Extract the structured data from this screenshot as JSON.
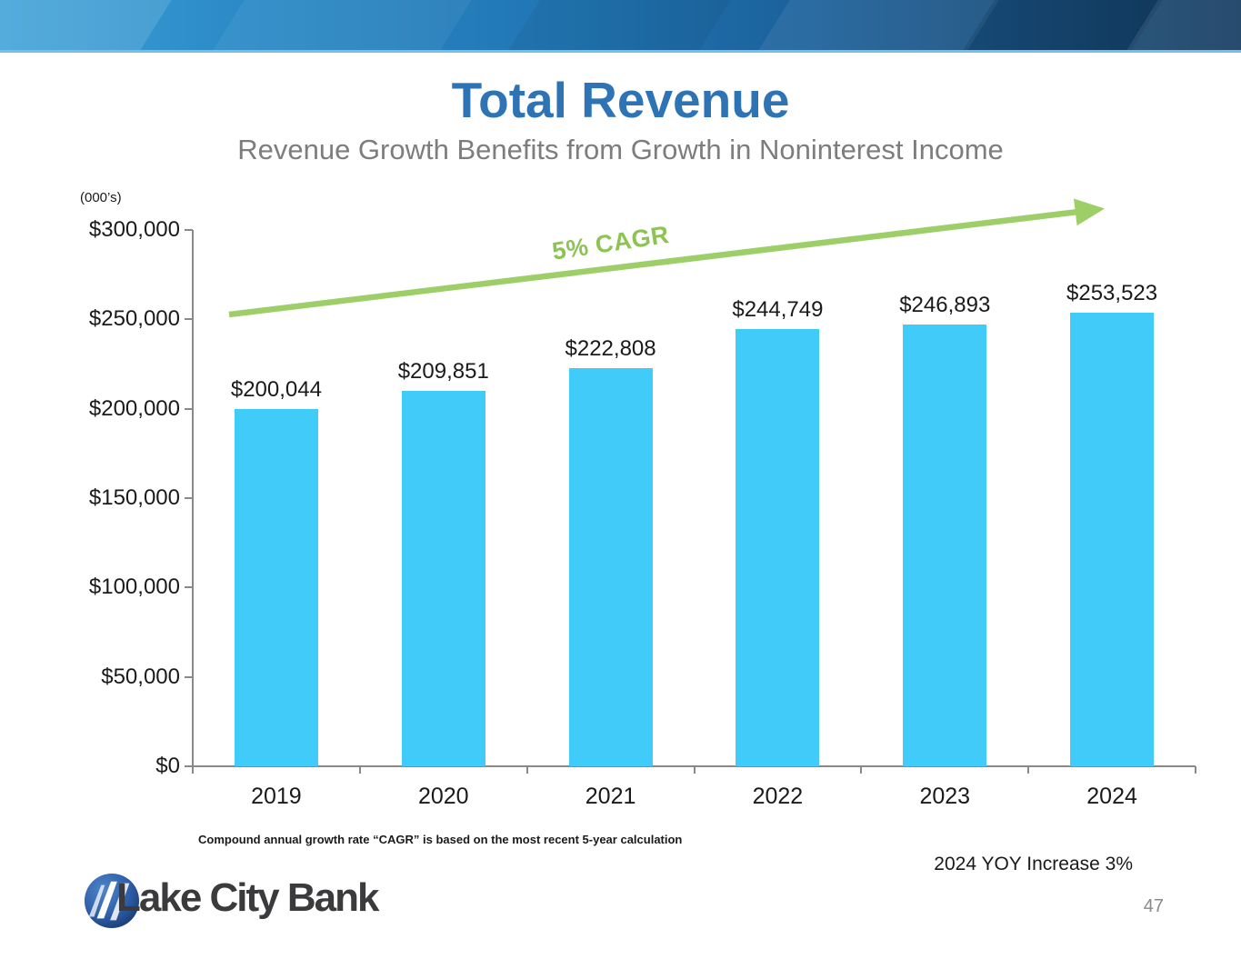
{
  "slide": {
    "title": "Total Revenue",
    "subtitle": "Revenue Growth Benefits from Growth in Noninterest Income",
    "footnote": "Compound annual growth rate “CAGR” is based on the most recent 5-year calculation",
    "yoy_note": "2024 YOY Increase 3%",
    "page_number": "47",
    "logo_text": "Lake City Bank"
  },
  "chart_data": {
    "type": "bar",
    "title": "Total Revenue",
    "subtitle": "Revenue Growth Benefits from Growth in Noninterest Income",
    "units_label": "(000’s)",
    "categories": [
      "2019",
      "2020",
      "2021",
      "2022",
      "2023",
      "2024"
    ],
    "values": [
      200044,
      209851,
      222808,
      244749,
      246893,
      253523
    ],
    "value_labels": [
      "$200,044",
      "$209,851",
      "$222,808",
      "$244,749",
      "$246,893",
      "$253,523"
    ],
    "ylim": [
      0,
      300000
    ],
    "y_tick_values": [
      0,
      50000,
      100000,
      150000,
      200000,
      250000,
      300000
    ],
    "y_tick_labels": [
      "$0",
      "$50,000",
      "$100,000",
      "$150,000",
      "$200,000",
      "$250,000",
      "$300,000"
    ],
    "grid": false,
    "legend": false,
    "annotation": "5% CAGR"
  },
  "theme": {
    "title_blue": "#2E74B5",
    "subtitle_gray": "#7D7D7D",
    "bar_cyan": "#40CBF8",
    "arrow_green": "#9DCE68",
    "cagr_green": "#8DC353",
    "axis_gray": "#898989",
    "banner_underline_blue": "#79BFE4",
    "logo_circle_blue": "#2E5EA8",
    "logo_text_gray": "#3B3B3D",
    "page_number_gray": "#8A8A8A",
    "text_black": "#1A1A1A"
  }
}
